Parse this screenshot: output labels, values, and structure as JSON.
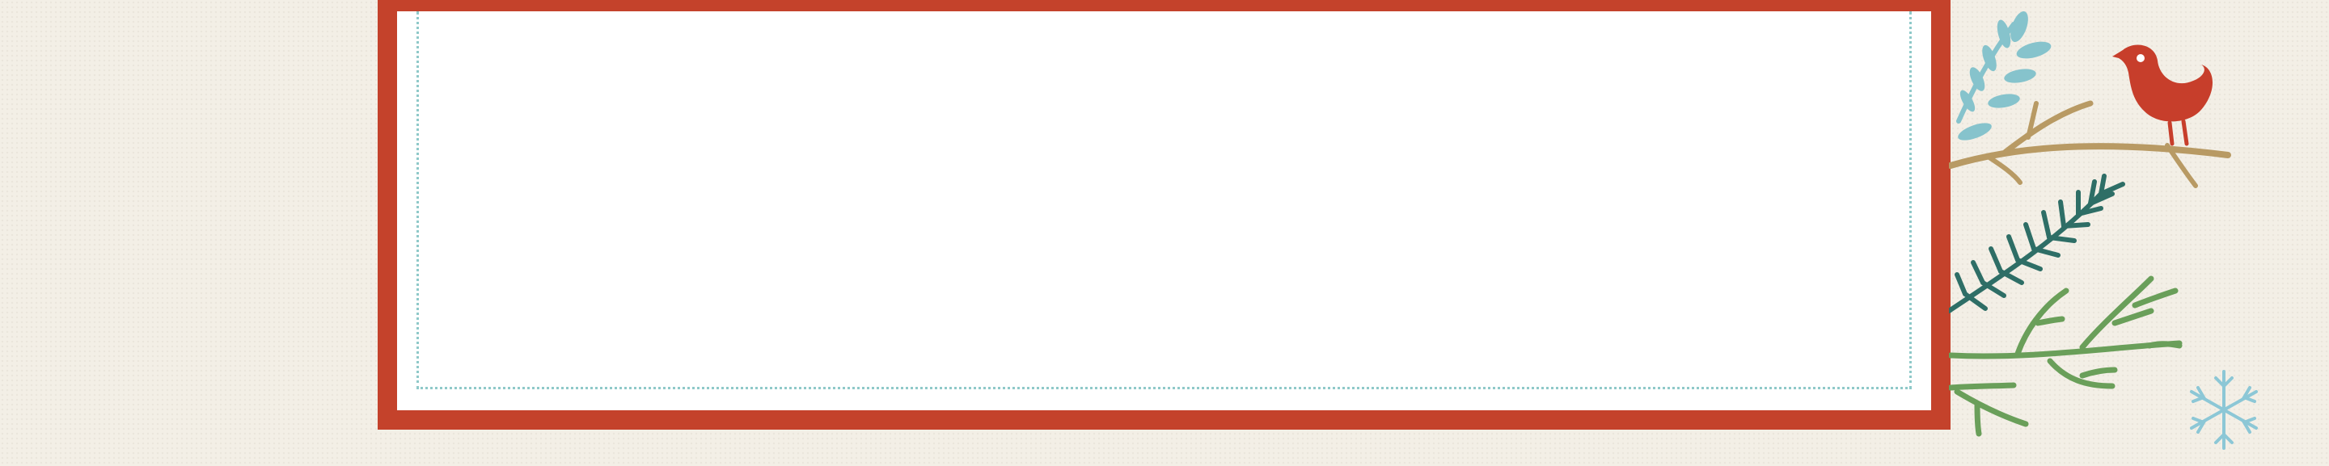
{
  "theme": {
    "background": "#f3efe6",
    "frame_color": "#c4422b",
    "card_color": "#ffffff",
    "dotted_border_color": "#8fc9c9"
  },
  "decorations": {
    "icons": [
      "bird-icon",
      "branch-icon",
      "pine-branch-icon",
      "leaf-branch-icon",
      "snowflake-icon"
    ],
    "colors": {
      "bird": "#c73e2b",
      "branch": "#b89a64",
      "blue_leaves": "#86c3cc",
      "pine": "#2e6e66",
      "green_branch": "#6a9f5a",
      "snowflake": "#8cc7d6"
    }
  }
}
